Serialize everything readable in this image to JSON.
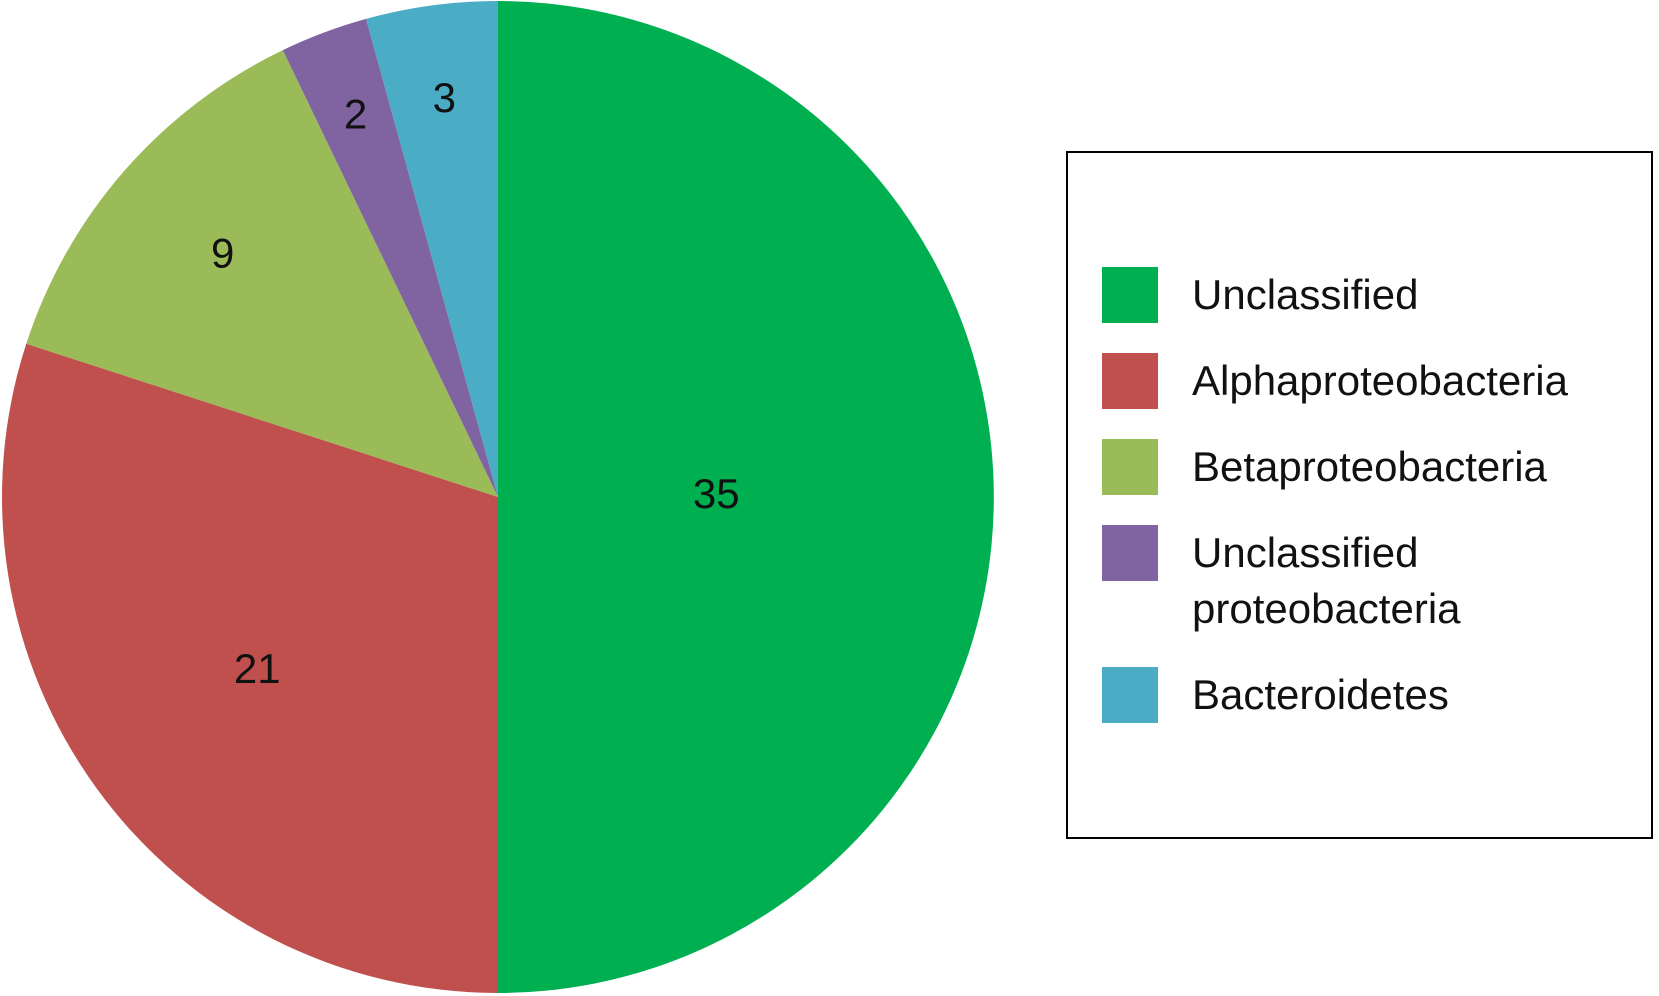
{
  "chart_data": {
    "type": "pie",
    "categories": [
      "Unclassified",
      "Alphaproteobacteria",
      "Betaproteobacteria",
      "Unclassified proteobacteria",
      "Bacteroidetes"
    ],
    "values": [
      35,
      21,
      9,
      2,
      3
    ],
    "colors": [
      "#00b050",
      "#c0504d",
      "#9bbb59",
      "#8064a2",
      "#4bacc6"
    ],
    "legend": "right"
  }
}
